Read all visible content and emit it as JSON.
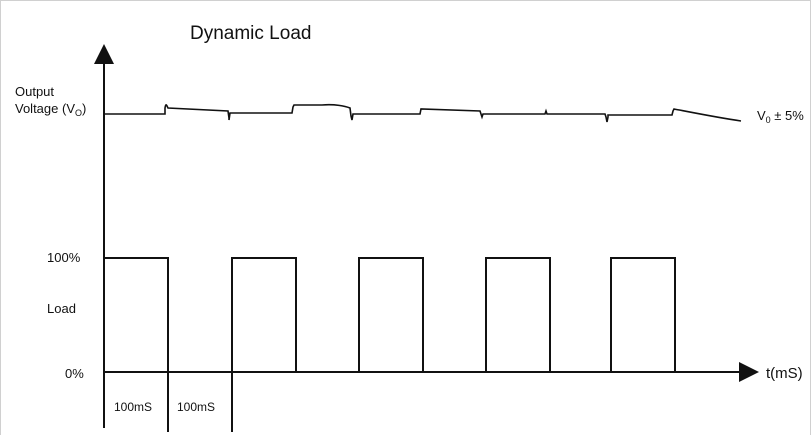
{
  "title": "Dynamic Load",
  "y_labels": {
    "output_voltage_line1": "Output",
    "output_voltage_line2": "Voltage (V",
    "output_voltage_sub": "O",
    "output_voltage_close": ")",
    "load_100": "100%",
    "load": "Load",
    "load_0": "0%"
  },
  "tolerance_label": {
    "v": "V",
    "sub": "0",
    "rest": " ± 5%"
  },
  "x_axis_label": "t(mS)",
  "intervals": [
    {
      "label": "100mS"
    },
    {
      "label": "100mS"
    }
  ],
  "load_pulses": [
    {
      "state": "high"
    },
    {
      "state": "high"
    },
    {
      "state": "high"
    },
    {
      "state": "high"
    },
    {
      "state": "high"
    }
  ],
  "colors": {
    "line": "#111111",
    "background": "#ffffff"
  }
}
